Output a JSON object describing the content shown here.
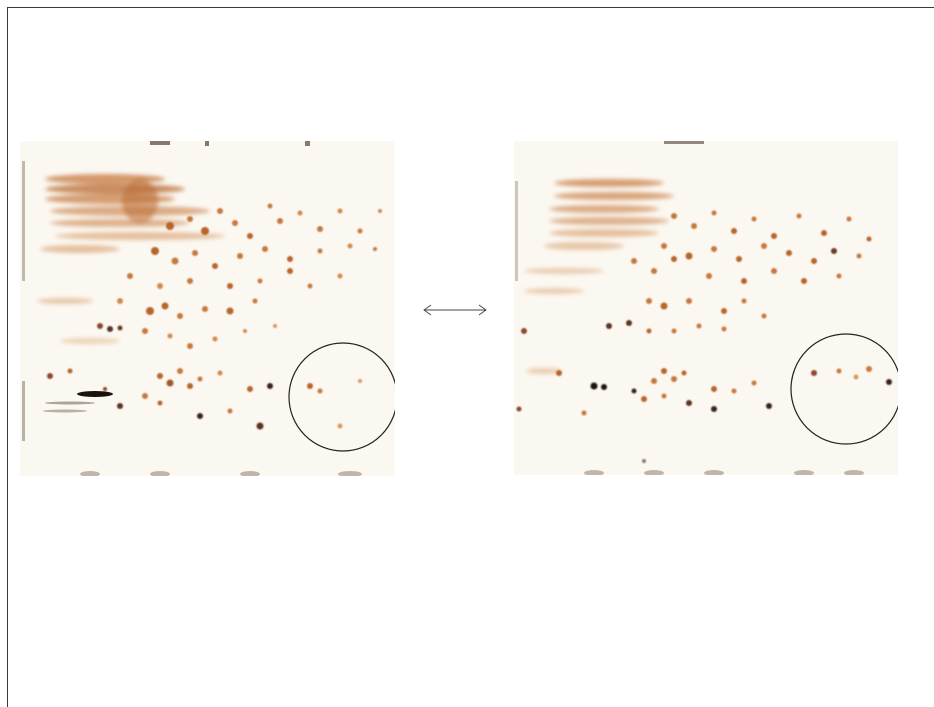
{
  "figure": {
    "panels": [
      {
        "name": "gel-left"
      },
      {
        "name": "gel-right"
      }
    ],
    "connector_icon": "double-arrow-icon",
    "highlight_icon": "circle-outline-icon",
    "colors": {
      "background": "#ffffff",
      "frame": "#3a3a3a",
      "gel_background": "#fbf8f2",
      "spot_light": "#d79a5a",
      "spot_mid": "#b8652a",
      "spot_dark": "#3a2418",
      "streak": "#c6783c",
      "annotation": "#222222"
    }
  }
}
